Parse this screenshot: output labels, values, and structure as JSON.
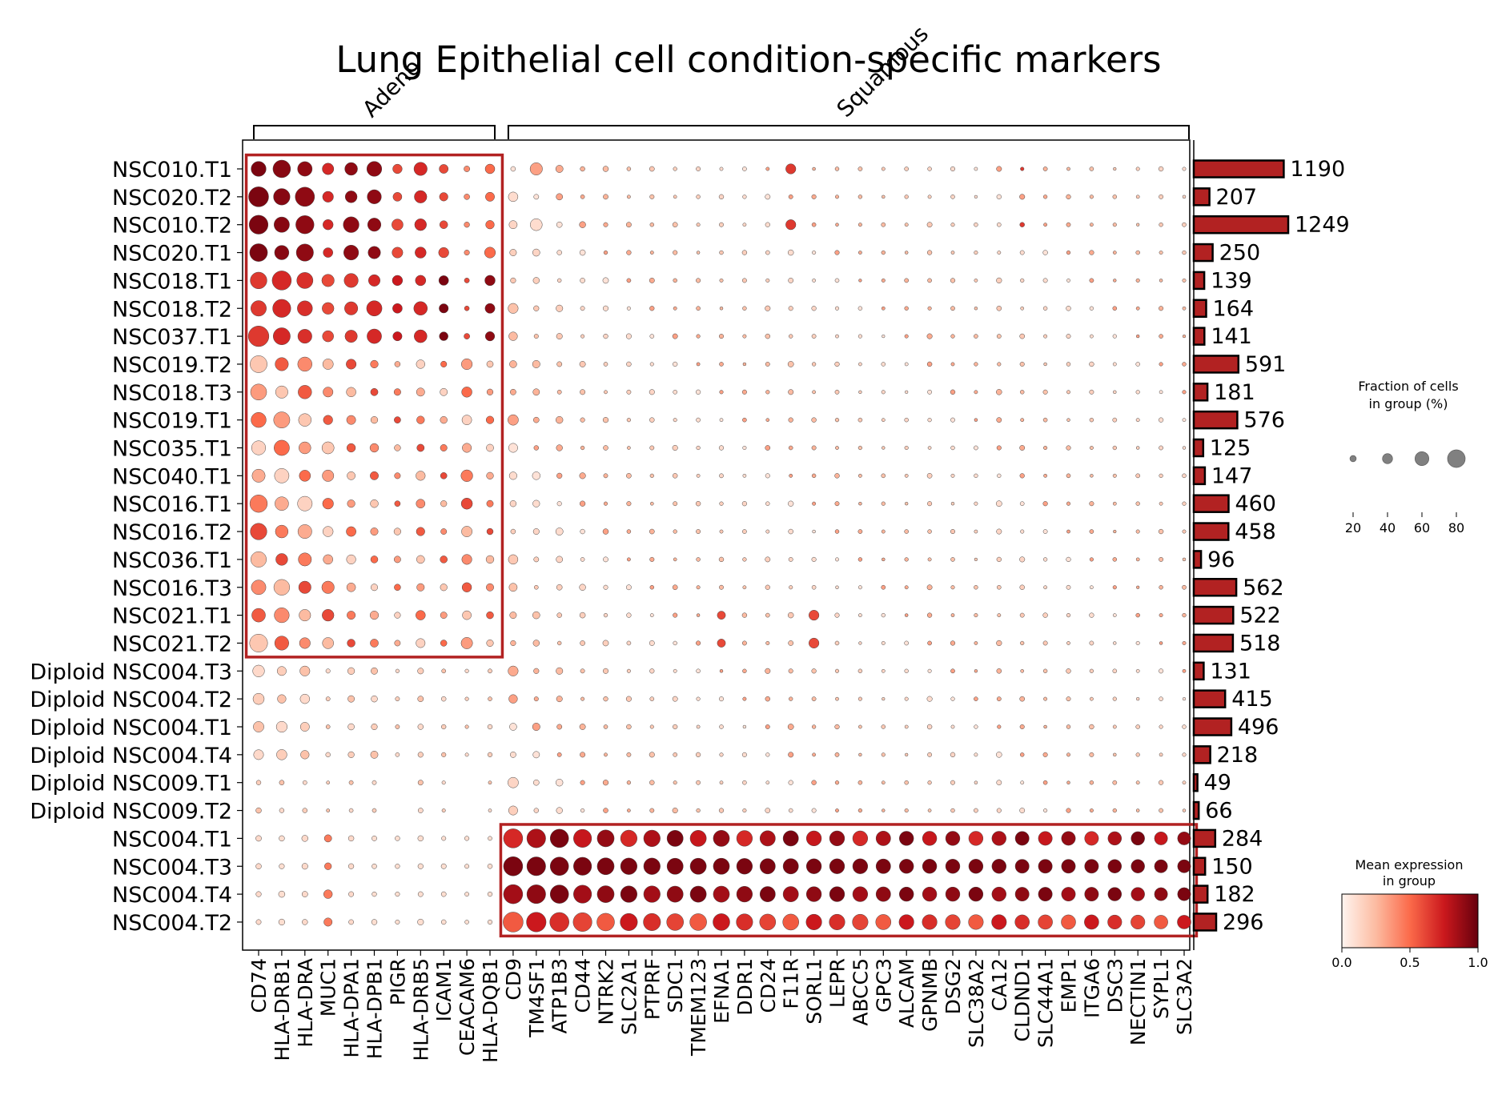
{
  "chart_data": {
    "type": "dotplot",
    "title": "Lung Epithelial cell condition-specific markers",
    "rows": [
      "NSC010.T1",
      "NSC020.T2",
      "NSC010.T2",
      "NSC020.T1",
      "NSC018.T1",
      "NSC018.T2",
      "NSC037.T1",
      "NSC019.T2",
      "NSC018.T3",
      "NSC019.T1",
      "NSC035.T1",
      "NSC040.T1",
      "NSC016.T1",
      "NSC016.T2",
      "NSC036.T1",
      "NSC016.T3",
      "NSC021.T1",
      "NSC021.T2",
      "Diploid NSC004.T3",
      "Diploid NSC004.T2",
      "Diploid NSC004.T1",
      "Diploid NSC004.T4",
      "Diploid NSC009.T1",
      "Diploid NSC009.T2",
      "NSC004.T1",
      "NSC004.T3",
      "NSC004.T4",
      "NSC004.T2"
    ],
    "columns": [
      "CD74",
      "HLA-DRB1",
      "HLA-DRA",
      "MUC1",
      "HLA-DPA1",
      "HLA-DPB1",
      "PIGR",
      "HLA-DRB5",
      "ICAM1",
      "CEACAM6",
      "HLA-DQB1",
      "CD9",
      "TM4SF1",
      "ATP1B3",
      "CD44",
      "NTRK2",
      "SLC2A1",
      "PTPRF",
      "SDC1",
      "TMEM123",
      "EFNA1",
      "DDR1",
      "CD24",
      "F11R",
      "SORL1",
      "LEPR",
      "ABCC5",
      "GPC3",
      "ALCAM",
      "GPNMB",
      "DSG2",
      "SLC38A2",
      "CA12",
      "CLDND1",
      "SLC44A1",
      "EMP1",
      "ITGA6",
      "DSC3",
      "NECTIN1",
      "SYPL1",
      "SLC3A2"
    ],
    "column_groups": [
      {
        "name": "Adeno",
        "start": 0,
        "end": 10,
        "rows_highlighted": [
          0,
          17
        ]
      },
      {
        "name": "Squamous",
        "start": 11,
        "end": 40,
        "rows_highlighted": [
          24,
          27
        ]
      }
    ],
    "cell_counts": [
      1190,
      207,
      1249,
      250,
      139,
      164,
      141,
      591,
      181,
      576,
      125,
      147,
      460,
      458,
      96,
      562,
      522,
      518,
      131,
      415,
      496,
      218,
      49,
      66,
      284,
      150,
      182,
      296
    ],
    "counts_axis_max": 1300,
    "size_legend": {
      "title_line1": "Fraction of cells",
      "title_line2": "in group (%)",
      "ticks": [
        20,
        40,
        60,
        80
      ]
    },
    "color_legend": {
      "title_line1": "Mean expression",
      "title_line2": "in group",
      "ticks": [
        "0.0",
        "0.5",
        "1.0"
      ],
      "range": [
        0,
        1
      ],
      "colormap": "Reds",
      "colors": [
        "#fff5f0",
        "#fcbba1",
        "#fb6a4a",
        "#cb181d",
        "#67000d"
      ]
    },
    "accent_color": "#b22222",
    "note": "Dot size encodes fraction of cells (%); dot color encodes mean expression (0-1). Values estimated from the figure."
  }
}
